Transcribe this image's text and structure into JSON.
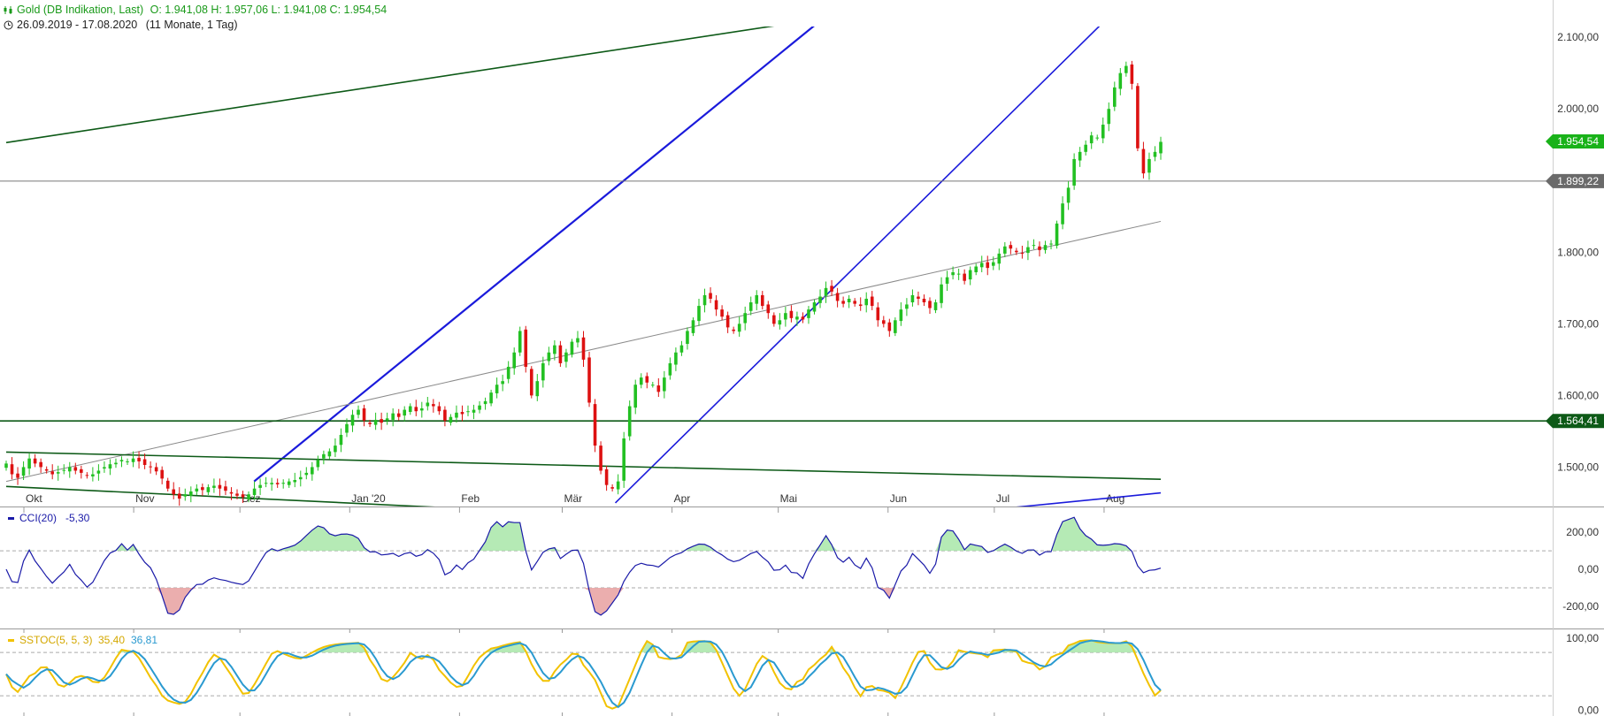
{
  "header": {
    "instrument": "Gold (DB Indikation, Last)",
    "ohlc": "O: 1.941,08  H: 1.957,06  L: 1.941,08  C: 1.954,54",
    "range": "26.09.2019 - 17.08.2020",
    "period": "(11 Monate, 1 Tag)"
  },
  "colors": {
    "up": "#22c022",
    "down": "#dd1111",
    "trend_blue": "#1a1adb",
    "trend_green": "#0d5a17",
    "grey_line": "#8a8a8a",
    "cci_line": "#1a1aa8",
    "cci_fill_pos": "#a8e6a8",
    "cci_fill_neg": "#e8a0a0",
    "stoch_k": "#f2c200",
    "stoch_d": "#2a9ad0",
    "stoch_fill": "#a8e6a8"
  },
  "chart_data": {
    "type": "candlestick",
    "x_range": [
      "2019-09-26",
      "2020-08-17"
    ],
    "price_axis": {
      "ylim": [
        1445,
        2115
      ],
      "ticks": [
        1500,
        1600,
        1700,
        1800,
        2000,
        2100
      ],
      "tick_labels": [
        "1.500,00",
        "1.600,00",
        "1.700,00",
        "1.800,00",
        "2.000,00",
        "2.100,00"
      ]
    },
    "month_labels": [
      {
        "date": "2019-10-01",
        "label": "Okt"
      },
      {
        "date": "2019-11-01",
        "label": "Nov"
      },
      {
        "date": "2019-12-01",
        "label": "Dez"
      },
      {
        "date": "2020-01-01",
        "label": "Jan '20"
      },
      {
        "date": "2020-02-01",
        "label": "Feb"
      },
      {
        "date": "2020-03-01",
        "label": "Mär"
      },
      {
        "date": "2020-04-01",
        "label": "Apr"
      },
      {
        "date": "2020-05-01",
        "label": "Mai"
      },
      {
        "date": "2020-06-01",
        "label": "Jun"
      },
      {
        "date": "2020-07-01",
        "label": "Jul"
      },
      {
        "date": "2020-08-01",
        "label": "Aug"
      }
    ],
    "closes": [
      1505,
      1490,
      1485,
      1500,
      1512,
      1505,
      1500,
      1495,
      1490,
      1493,
      1496,
      1500,
      1495,
      1492,
      1488,
      1490,
      1495,
      1500,
      1504,
      1506,
      1510,
      1508,
      1512,
      1508,
      1503,
      1500,
      1494,
      1484,
      1470,
      1462,
      1456,
      1462,
      1466,
      1470,
      1468,
      1472,
      1474,
      1470,
      1467,
      1463,
      1460,
      1458,
      1462,
      1470,
      1475,
      1478,
      1478,
      1476,
      1478,
      1480,
      1482,
      1486,
      1492,
      1500,
      1510,
      1518,
      1522,
      1530,
      1545,
      1560,
      1573,
      1580,
      1565,
      1560,
      1566,
      1562,
      1568,
      1575,
      1570,
      1580,
      1585,
      1578,
      1582,
      1590,
      1585,
      1578,
      1565,
      1570,
      1576,
      1574,
      1578,
      1580,
      1586,
      1592,
      1604,
      1615,
      1620,
      1640,
      1660,
      1690,
      1640,
      1600,
      1620,
      1645,
      1660,
      1670,
      1645,
      1660,
      1675,
      1680,
      1650,
      1590,
      1530,
      1495,
      1475,
      1470,
      1480,
      1540,
      1585,
      1615,
      1625,
      1618,
      1615,
      1605,
      1625,
      1645,
      1660,
      1670,
      1690,
      1705,
      1725,
      1740,
      1735,
      1720,
      1710,
      1695,
      1690,
      1700,
      1715,
      1730,
      1740,
      1725,
      1715,
      1700,
      1705,
      1715,
      1708,
      1710,
      1706,
      1720,
      1730,
      1738,
      1750,
      1745,
      1732,
      1728,
      1735,
      1728,
      1725,
      1735,
      1725,
      1705,
      1700,
      1690,
      1705,
      1720,
      1727,
      1740,
      1735,
      1730,
      1722,
      1730,
      1755,
      1765,
      1772,
      1770,
      1760,
      1775,
      1780,
      1785,
      1778,
      1786,
      1798,
      1808,
      1805,
      1800,
      1798,
      1807,
      1810,
      1803,
      1810,
      1812,
      1840,
      1868,
      1890,
      1930,
      1940,
      1950,
      1963,
      1960,
      1978,
      2000,
      2030,
      2050,
      2060,
      2035,
      1945,
      1910,
      1930,
      1940,
      1954
    ]
  },
  "overlay_lines": {
    "h_1899": "1.899,22",
    "h_1564": "1.564,41"
  },
  "price_badges": {
    "last": "1.954,54",
    "line_1899": "1.899,22",
    "line_1564": "1.564,41"
  },
  "cci": {
    "legend": "CCI(20)",
    "value": "-5,30",
    "ylim": [
      -320,
      330
    ],
    "ticks": [
      200,
      0,
      -200
    ],
    "tick_labels": [
      "200,00",
      "0,00",
      "-200,00"
    ],
    "levels": [
      100,
      -100
    ]
  },
  "sstoc": {
    "legend": "SSTOC(5, 5, 3)",
    "k_value": "35,40",
    "d_value": "36,81",
    "ylim": [
      -8,
      112
    ],
    "ticks": [
      100,
      0
    ],
    "tick_labels": [
      "100,00",
      "0,00"
    ],
    "levels": [
      80,
      20
    ]
  }
}
